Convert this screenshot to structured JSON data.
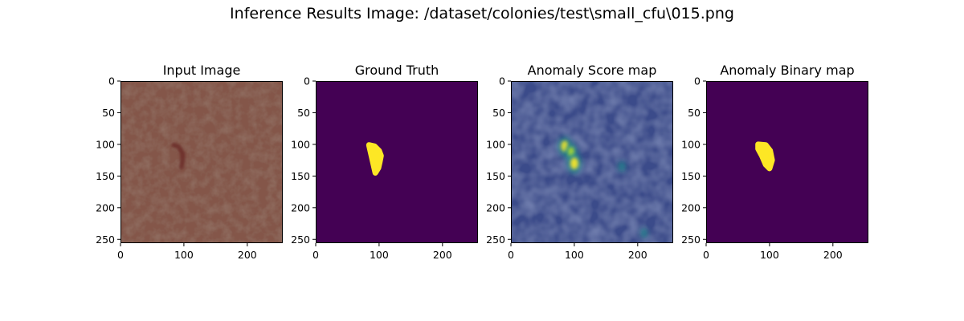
{
  "figure": {
    "suptitle": "Inference Results Image: /dataset/colonies/test\\small_cfu\\015.png"
  },
  "chart_data": [
    {
      "type": "heatmap",
      "title": "Input Image",
      "image_kind": "rgb-photo",
      "description_colors": {
        "base": "#84574a",
        "defect": "#6b2a26"
      },
      "xlim": [
        0,
        256
      ],
      "ylim": [
        256,
        0
      ],
      "xticks": [
        0,
        100,
        200
      ],
      "yticks": [
        0,
        50,
        100,
        150,
        200,
        250
      ],
      "defect_path": [
        [
          84,
          101
        ],
        [
          92,
          104
        ],
        [
          98,
          114
        ],
        [
          98,
          126
        ],
        [
          96,
          136
        ]
      ]
    },
    {
      "type": "heatmap",
      "title": "Ground Truth",
      "image_kind": "binary-mask",
      "colormap": "viridis",
      "background_color": "#440154",
      "foreground_color": "#fde725",
      "xlim": [
        0,
        256
      ],
      "ylim": [
        256,
        0
      ],
      "xticks": [
        0,
        100,
        200
      ],
      "yticks": [
        0,
        50,
        100,
        150,
        200,
        250
      ],
      "mask_path": [
        [
          84,
          101
        ],
        [
          93,
          103
        ],
        [
          100,
          110
        ],
        [
          103,
          118
        ],
        [
          101,
          128
        ],
        [
          99,
          137
        ],
        [
          94,
          145
        ]
      ]
    },
    {
      "type": "heatmap",
      "title": "Anomaly Score map",
      "image_kind": "score-map",
      "colormap": "viridis",
      "xlim": [
        0,
        256
      ],
      "ylim": [
        256,
        0
      ],
      "xticks": [
        0,
        100,
        200
      ],
      "yticks": [
        0,
        50,
        100,
        150,
        200,
        250
      ],
      "hotspots": [
        {
          "x": 85,
          "y": 103,
          "value": 0.9
        },
        {
          "x": 95,
          "y": 112,
          "value": 0.75
        },
        {
          "x": 100,
          "y": 130,
          "value": 1.0
        },
        {
          "x": 175,
          "y": 135,
          "value": 0.25
        },
        {
          "x": 210,
          "y": 240,
          "value": 0.2
        }
      ]
    },
    {
      "type": "heatmap",
      "title": "Anomaly Binary map",
      "image_kind": "binary-mask",
      "colormap": "viridis",
      "background_color": "#440154",
      "foreground_color": "#fde725",
      "xlim": [
        0,
        256
      ],
      "ylim": [
        256,
        0
      ],
      "xticks": [
        0,
        100,
        200
      ],
      "yticks": [
        0,
        50,
        100,
        150,
        200,
        250
      ],
      "mask_path": [
        [
          82,
          100
        ],
        [
          94,
          101
        ],
        [
          101,
          110
        ],
        [
          104,
          125
        ],
        [
          100,
          138
        ],
        [
          94,
          132
        ],
        [
          88,
          118
        ],
        [
          82,
          107
        ]
      ]
    }
  ]
}
